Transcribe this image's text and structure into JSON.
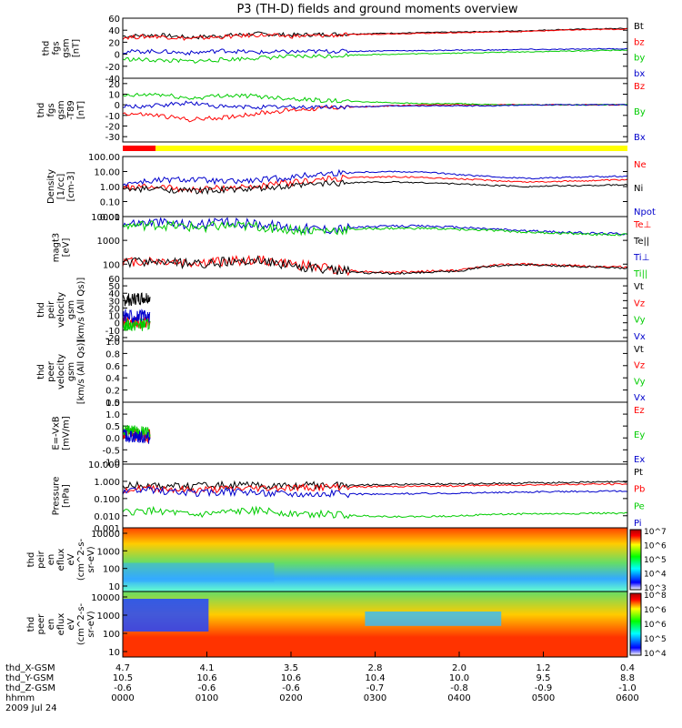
{
  "title": "P3 (TH-D) fields and ground moments overview",
  "chart_data": [
    {
      "type": "line",
      "id": "p1",
      "ylabel_lines": [
        "thd",
        "fgs",
        "gsm",
        "[nT]"
      ],
      "yticks": [
        -40,
        -20,
        0,
        20,
        40,
        60
      ],
      "ylim": [
        -40,
        60
      ],
      "series": [
        {
          "name": "Bt",
          "color": "#000000",
          "values": [
            30,
            32,
            28,
            31,
            34,
            32,
            33,
            34,
            35,
            36,
            37,
            38,
            39,
            41,
            42,
            43
          ]
        },
        {
          "name": "bz",
          "color": "#ff0000",
          "values": [
            28,
            30,
            26,
            29,
            32,
            30,
            31,
            33,
            34,
            35,
            36,
            37,
            38,
            40,
            41,
            42
          ]
        },
        {
          "name": "by",
          "color": "#00cc00",
          "values": [
            -8,
            -10,
            -12,
            -9,
            -6,
            -4,
            -3,
            -1,
            0,
            1,
            2,
            3,
            4,
            5,
            6,
            7
          ]
        },
        {
          "name": "bx",
          "color": "#0000cc",
          "values": [
            4,
            5,
            2,
            6,
            3,
            4,
            5,
            5,
            6,
            6,
            7,
            7,
            8,
            8,
            9,
            9
          ]
        }
      ]
    },
    {
      "type": "line",
      "id": "p2",
      "ylabel_lines": [
        "thd",
        "fgs",
        "gsm",
        "-T89",
        "[nT]"
      ],
      "yticks": [
        -30,
        -20,
        -10,
        0,
        10,
        20
      ],
      "ylim": [
        -35,
        25
      ],
      "series": [
        {
          "name": "Bz",
          "color": "#ff0000",
          "values": [
            -8,
            -10,
            -14,
            -12,
            -8,
            -5,
            -3,
            -2,
            -1,
            0,
            0,
            0,
            0,
            0,
            0,
            0
          ]
        },
        {
          "name": "By",
          "color": "#00cc00",
          "values": [
            8,
            10,
            6,
            9,
            8,
            6,
            4,
            3,
            2,
            1,
            1,
            0,
            0,
            0,
            0,
            0
          ]
        },
        {
          "name": "Bx",
          "color": "#0000cc",
          "values": [
            -2,
            -1,
            2,
            -2,
            -2,
            -2,
            -2,
            -2,
            -1,
            -1,
            -1,
            -1,
            0,
            0,
            0,
            0
          ]
        }
      ]
    },
    {
      "type": "line",
      "id": "p3",
      "ylabel_lines": [
        "Density",
        "[1/cc]",
        "[cm-3]"
      ],
      "yticks": [
        "0.01",
        "0.10",
        "1.00",
        "10.00",
        "100.00"
      ],
      "ylim": [
        0.01,
        100
      ],
      "scale": "log",
      "series": [
        {
          "name": "Ne",
          "color": "#ff0000",
          "values": [
            0.8,
            1.0,
            0.6,
            0.8,
            1.0,
            1.8,
            3.0,
            4.0,
            4.5,
            4.0,
            3.2,
            2.5,
            2.0,
            2.2,
            2.5,
            2.8
          ]
        },
        {
          "name": "Ni",
          "color": "#000000",
          "values": [
            0.6,
            0.7,
            0.5,
            0.6,
            0.7,
            1.0,
            1.6,
            1.9,
            2.0,
            1.8,
            1.5,
            1.2,
            1.0,
            1.1,
            1.2,
            1.3
          ]
        },
        {
          "name": "Npot",
          "color": "#0000cc",
          "values": [
            1.5,
            2.5,
            3.0,
            2.0,
            2.5,
            4.0,
            7.0,
            9.0,
            10.0,
            9.0,
            6.0,
            4.5,
            3.5,
            4.0,
            4.5,
            5.0
          ]
        }
      ]
    },
    {
      "type": "line",
      "id": "p4",
      "ylabel_lines": [
        "magt3",
        "[eV]"
      ],
      "yticks": [
        "100",
        "1000",
        "10000"
      ],
      "ylim": [
        25,
        10000
      ],
      "scale": "log",
      "series": [
        {
          "name": "Te⊥",
          "color": "#ff0000",
          "values": [
            120,
            140,
            110,
            130,
            150,
            100,
            70,
            50,
            45,
            50,
            55,
            90,
            100,
            90,
            80,
            75
          ]
        },
        {
          "name": "Te||",
          "color": "#000000",
          "values": [
            110,
            130,
            100,
            120,
            140,
            90,
            60,
            45,
            40,
            45,
            50,
            85,
            95,
            85,
            75,
            70
          ]
        },
        {
          "name": "Ti⊥",
          "color": "#0000cc",
          "values": [
            5000,
            6000,
            4500,
            5500,
            5000,
            3500,
            3000,
            3500,
            4000,
            4000,
            3500,
            3000,
            2500,
            2200,
            2000,
            1900
          ]
        },
        {
          "name": "Ti||",
          "color": "#00cc00",
          "values": [
            4000,
            4500,
            3500,
            4000,
            3800,
            2800,
            2500,
            3000,
            3200,
            3200,
            2900,
            2600,
            2200,
            2000,
            1800,
            1700
          ]
        }
      ]
    },
    {
      "type": "line",
      "id": "p5",
      "ylabel_lines": [
        "thd",
        "peir",
        "velocity",
        "gsm",
        "[km/s (All Qs)]"
      ],
      "yticks": [
        -20,
        -10,
        0,
        10,
        20,
        30,
        40,
        50,
        60
      ],
      "ylim": [
        -25,
        60
      ],
      "series": [
        {
          "name": "Vt",
          "color": "#000000",
          "values": [
            30,
            35
          ]
        },
        {
          "name": "Vz",
          "color": "#ff0000",
          "values": [
            2,
            0
          ]
        },
        {
          "name": "Vy",
          "color": "#00cc00",
          "values": [
            -4,
            -2
          ]
        },
        {
          "name": "Vx",
          "color": "#0000cc",
          "values": [
            10,
            8
          ]
        }
      ]
    },
    {
      "type": "line",
      "id": "p6",
      "ylabel_lines": [
        "thd",
        "peer",
        "velocity",
        "gsm",
        "[km/s (All Qs)]"
      ],
      "yticks": [
        "0.0",
        "0.2",
        "0.4",
        "0.6",
        "0.8",
        "1.0"
      ],
      "ylim": [
        0,
        1
      ],
      "series": [
        {
          "name": "Vt",
          "color": "#000000",
          "values": []
        },
        {
          "name": "Vz",
          "color": "#ff0000",
          "values": []
        },
        {
          "name": "Vy",
          "color": "#00cc00",
          "values": []
        },
        {
          "name": "Vx",
          "color": "#0000cc",
          "values": []
        }
      ]
    },
    {
      "type": "line",
      "id": "p7",
      "ylabel_lines": [
        "E=-VxB",
        "[mV/m]"
      ],
      "yticks": [
        "-1.0",
        "-0.5",
        "0.0",
        "0.5",
        "1.0",
        "1.5"
      ],
      "ylim": [
        -1.1,
        1.5
      ],
      "series": [
        {
          "name": "Ez",
          "color": "#ff0000",
          "values": [
            0.2,
            0.1
          ]
        },
        {
          "name": "Ey",
          "color": "#00cc00",
          "values": [
            0.3,
            0.2
          ]
        },
        {
          "name": "Ex",
          "color": "#0000cc",
          "values": [
            0.1,
            0.0
          ]
        }
      ]
    },
    {
      "type": "line",
      "id": "p8",
      "ylabel_lines": [
        "Pressure",
        "[nPa]"
      ],
      "yticks": [
        "0.001",
        "0.010",
        "0.100",
        "1.000",
        "10.000"
      ],
      "ylim": [
        0.002,
        10
      ],
      "scale": "log",
      "series": [
        {
          "name": "Pt",
          "color": "#000000",
          "values": [
            0.55,
            0.6,
            0.5,
            0.6,
            0.55,
            0.55,
            0.6,
            0.6,
            0.65,
            0.7,
            0.7,
            0.75,
            0.8,
            0.85,
            0.9,
            0.95
          ]
        },
        {
          "name": "Pb",
          "color": "#ff0000",
          "values": [
            0.35,
            0.4,
            0.3,
            0.35,
            0.4,
            0.42,
            0.45,
            0.48,
            0.5,
            0.52,
            0.55,
            0.6,
            0.62,
            0.65,
            0.68,
            0.7
          ]
        },
        {
          "name": "Pe",
          "color": "#00cc00",
          "values": [
            0.015,
            0.02,
            0.01,
            0.015,
            0.02,
            0.014,
            0.012,
            0.01,
            0.009,
            0.009,
            0.01,
            0.012,
            0.013,
            0.013,
            0.014,
            0.014
          ]
        },
        {
          "name": "Pi",
          "color": "#0000cc",
          "values": [
            0.25,
            0.3,
            0.2,
            0.25,
            0.22,
            0.2,
            0.19,
            0.18,
            0.18,
            0.2,
            0.21,
            0.22,
            0.24,
            0.25,
            0.26,
            0.27
          ]
        }
      ]
    },
    {
      "type": "heatmap",
      "id": "p9",
      "ylabel_lines": [
        "thd",
        "peir",
        "en",
        "eflux",
        "eV",
        "(cm^2-s-",
        "sr-eV)"
      ],
      "yticks": [
        "10",
        "100",
        "1000",
        "10000"
      ],
      "colorbar_labels": [
        "10^3",
        "10^4",
        "10^5",
        "10^6",
        "10^7"
      ]
    },
    {
      "type": "heatmap",
      "id": "p10",
      "ylabel_lines": [
        "thd",
        "peer",
        "en",
        "eflux",
        "eV",
        "(cm^2-s-",
        "sr-eV)"
      ],
      "yticks": [
        "10",
        "100",
        "1000",
        "10000"
      ],
      "colorbar_labels": [
        "10^4",
        "10^5",
        "10^6",
        "10^6",
        "10^8"
      ]
    }
  ],
  "xaxis": {
    "row_labels": [
      "thd_X-GSM",
      "thd_Y-GSM",
      "thd_Z-GSM",
      "hhmm",
      "2009 Jul 24"
    ],
    "x_gsm": [
      "4.7",
      "4.1",
      "3.5",
      "2.8",
      "2.0",
      "1.2",
      "0.4"
    ],
    "y_gsm": [
      "10.5",
      "10.6",
      "10.6",
      "10.4",
      "10.0",
      "9.5",
      "8.8"
    ],
    "z_gsm": [
      "-0.6",
      "-0.6",
      "-0.6",
      "-0.7",
      "-0.8",
      "-0.9",
      "-1.0"
    ],
    "hhmm": [
      "0000",
      "0100",
      "0200",
      "0300",
      "0400",
      "0500",
      "0600"
    ]
  },
  "mode_bar": {
    "colors": [
      "#ff0000",
      "#ffff00"
    ],
    "split_fraction": 0.065
  }
}
